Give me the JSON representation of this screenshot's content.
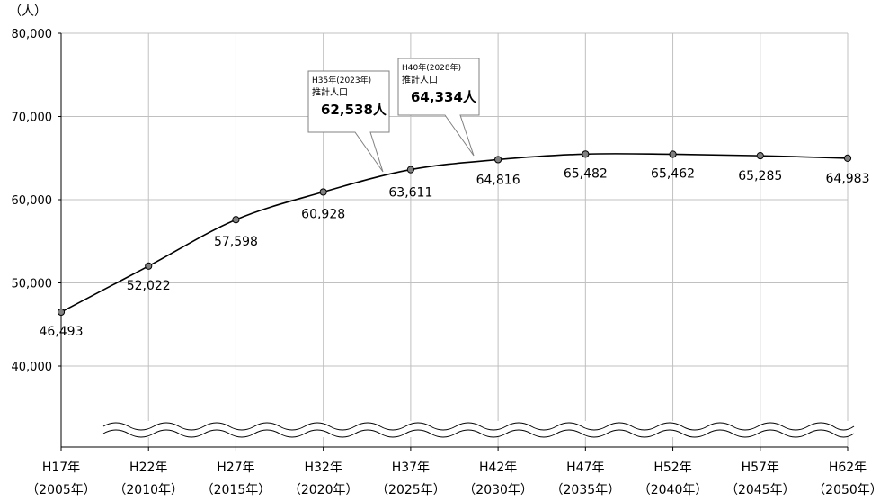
{
  "chart_data": {
    "type": "line",
    "unit_label": "（人）",
    "categories": [
      "H17年",
      "H22年",
      "H27年",
      "H32年",
      "H37年",
      "H42年",
      "H47年",
      "H52年",
      "H57年",
      "H62年"
    ],
    "categories_sub": [
      "（2005年）",
      "（2010年）",
      "（2015年）",
      "（2020年）",
      "（2025年）",
      "（2030年）",
      "（2035年）",
      "（2040年）",
      "（2045年）",
      "（2050年）"
    ],
    "values": [
      46493,
      52022,
      57598,
      60928,
      63611,
      64816,
      65482,
      65462,
      65285,
      64983
    ],
    "value_labels": [
      "46,493",
      "52,022",
      "57,598",
      "60,928",
      "63,611",
      "64,816",
      "65,482",
      "65,462",
      "65,285",
      "64,983"
    ],
    "y_ticks": [
      40000,
      50000,
      60000,
      70000,
      80000
    ],
    "y_tick_labels": [
      "40,000",
      "50,000",
      "60,000",
      "70,000",
      "80,000"
    ],
    "ylim": [
      40000,
      80000
    ],
    "axis_break": true,
    "grid": true,
    "annotations": [
      {
        "line1": "H35年(2023年)",
        "line2": "推計人口",
        "value": "62,538人"
      },
      {
        "line1": "H40年(2028年)",
        "line2": "推計人口",
        "value": "64,334人"
      }
    ],
    "colors": {
      "line": "#000000",
      "marker_fill": "#808080",
      "grid": "#c0c0c0"
    }
  }
}
